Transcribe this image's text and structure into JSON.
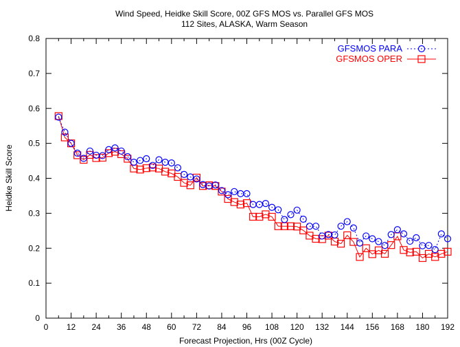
{
  "chart_data": {
    "type": "line",
    "title": "Wind Speed, Heidke Skill Score, 00Z GFS MOS vs. Parallel GFS MOS",
    "subtitle": "112 Sites, ALASKA, Warm Season",
    "xlabel": "Forecast Projection, Hrs (00Z Cycle)",
    "ylabel": "Heidke Skill Score",
    "xlim": [
      0,
      192
    ],
    "ylim": [
      0,
      0.8
    ],
    "xticks": [
      "0",
      "12",
      "24",
      "36",
      "48",
      "60",
      "72",
      "84",
      "96",
      "108",
      "120",
      "132",
      "144",
      "156",
      "168",
      "180",
      "192"
    ],
    "yticks": [
      "0",
      "0.1",
      "0.2",
      "0.3",
      "0.4",
      "0.5",
      "0.6",
      "0.7",
      "0.8"
    ],
    "grid": false,
    "legend_position": "top-right",
    "x": [
      6,
      9,
      12,
      15,
      18,
      21,
      24,
      27,
      30,
      33,
      36,
      39,
      42,
      45,
      48,
      51,
      54,
      57,
      60,
      63,
      66,
      69,
      72,
      75,
      78,
      81,
      84,
      87,
      90,
      93,
      96,
      99,
      102,
      105,
      108,
      111,
      114,
      117,
      120,
      123,
      126,
      129,
      132,
      135,
      138,
      141,
      144,
      147,
      150,
      153,
      156,
      159,
      162,
      165,
      168,
      171,
      174,
      177,
      180,
      183,
      186,
      189,
      192
    ],
    "series": [
      {
        "name": "GFSMOS PARA",
        "color": "#0000ff",
        "marker": "circle",
        "line": "dotted",
        "values": [
          0.575,
          0.532,
          0.5,
          0.472,
          0.457,
          0.478,
          0.466,
          0.465,
          0.482,
          0.487,
          0.478,
          0.462,
          0.446,
          0.451,
          0.456,
          0.437,
          0.453,
          0.446,
          0.444,
          0.43,
          0.411,
          0.404,
          0.398,
          0.382,
          0.378,
          0.381,
          0.365,
          0.353,
          0.362,
          0.356,
          0.356,
          0.325,
          0.325,
          0.328,
          0.317,
          0.31,
          0.282,
          0.296,
          0.309,
          0.283,
          0.263,
          0.263,
          0.235,
          0.239,
          0.238,
          0.263,
          0.276,
          0.258,
          0.215,
          0.235,
          0.227,
          0.219,
          0.208,
          0.239,
          0.253,
          0.241,
          0.22,
          0.23,
          0.207,
          0.208,
          0.196,
          0.241,
          0.227
        ]
      },
      {
        "name": "GFSMOS OPER",
        "color": "#ff0000",
        "marker": "square",
        "line": "solid",
        "values": [
          0.578,
          0.517,
          0.5,
          0.466,
          0.453,
          0.467,
          0.458,
          0.459,
          0.472,
          0.476,
          0.469,
          0.456,
          0.428,
          0.425,
          0.429,
          0.431,
          0.428,
          0.419,
          0.414,
          0.404,
          0.387,
          0.38,
          0.402,
          0.378,
          0.38,
          0.378,
          0.362,
          0.341,
          0.332,
          0.325,
          0.329,
          0.29,
          0.29,
          0.297,
          0.29,
          0.263,
          0.263,
          0.263,
          0.262,
          0.251,
          0.236,
          0.227,
          0.226,
          0.236,
          0.219,
          0.213,
          0.237,
          0.218,
          0.175,
          0.2,
          0.183,
          0.194,
          0.184,
          0.209,
          0.234,
          0.195,
          0.188,
          0.19,
          0.172,
          0.184,
          0.175,
          0.184,
          0.19
        ]
      }
    ]
  }
}
